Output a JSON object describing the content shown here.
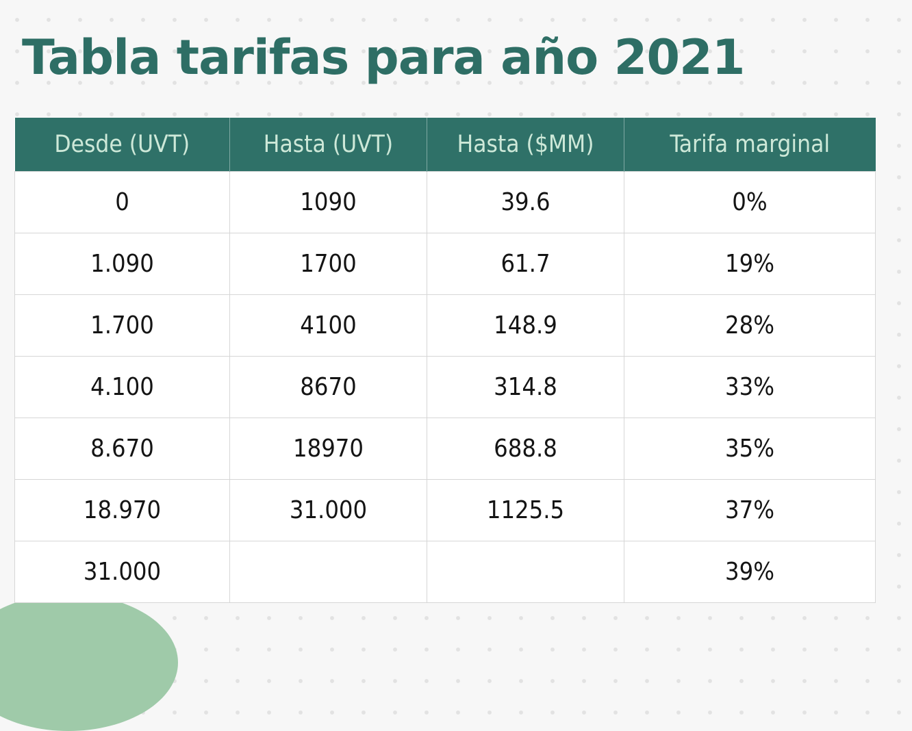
{
  "title": "Tabla tarifas para año 2021",
  "table": {
    "headers": [
      "Desde (UVT)",
      "Hasta (UVT)",
      "Hasta ($MM)",
      "Tarifa marginal"
    ],
    "rows": [
      [
        "0",
        "1090",
        "39.6",
        "0%"
      ],
      [
        "1.090",
        "1700",
        "61.7",
        "19%"
      ],
      [
        "1.700",
        "4100",
        "148.9",
        "28%"
      ],
      [
        "4.100",
        "8670",
        "314.8",
        "33%"
      ],
      [
        "8.670",
        "18970",
        "688.8",
        "35%"
      ],
      [
        "18.970",
        "31.000",
        "1125.5",
        "37%"
      ],
      [
        "31.000",
        "",
        "",
        "39%"
      ]
    ]
  },
  "colors": {
    "title": "#2e6e65",
    "header_bg": "#2f7168",
    "header_text": "#cde8d8",
    "accent_blob": "#9fcaa9"
  }
}
